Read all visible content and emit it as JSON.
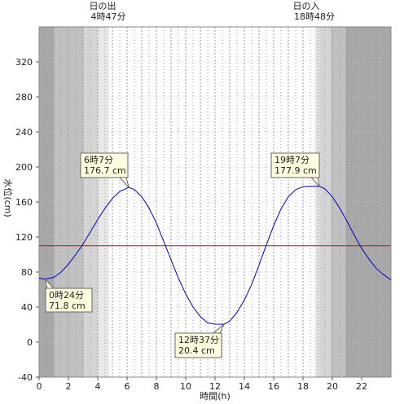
{
  "chart_data": {
    "type": "line",
    "title": "",
    "xlabel": "時間(h)",
    "ylabel": "水位(cm)",
    "xlim": [
      0,
      24
    ],
    "ylim": [
      -40,
      360
    ],
    "x_ticks": [
      0,
      2,
      4,
      6,
      8,
      10,
      12,
      14,
      16,
      18,
      20,
      22
    ],
    "y_ticks": [
      -40,
      0,
      40,
      80,
      120,
      160,
      200,
      240,
      280,
      320
    ],
    "grid": "vertical-dotted-every-half-hour",
    "reference_line": {
      "value": 110,
      "color": "#dd0000"
    },
    "series": [
      {
        "color": "#0000cc",
        "x": [
          0,
          0.4,
          1,
          1.5,
          2,
          2.5,
          3,
          3.5,
          4,
          4.5,
          5,
          5.5,
          6.12,
          6.5,
          7,
          7.5,
          8,
          8.5,
          9,
          9.5,
          10,
          10.5,
          11,
          11.5,
          12,
          12.62,
          13,
          13.5,
          14,
          14.5,
          15,
          15.5,
          16,
          16.5,
          17,
          17.5,
          18,
          18.5,
          19.12,
          19.5,
          20,
          20.5,
          21,
          21.5,
          22,
          22.5,
          23,
          23.5,
          24
        ],
        "y": [
          73,
          71.8,
          74,
          80,
          89,
          100,
          112,
          126,
          140,
          153,
          164,
          172,
          176.7,
          174,
          166,
          153,
          136,
          115,
          94,
          73,
          55,
          40,
          29,
          22,
          20.5,
          20.4,
          24,
          34,
          48,
          66,
          88,
          111,
          133,
          152,
          166,
          174,
          177.5,
          177.9,
          177.9,
          175,
          166,
          153,
          138,
          122,
          107,
          95,
          84,
          77,
          71
        ]
      }
    ],
    "daylight": {
      "sunrise": {
        "label_line1": "日の出",
        "label_line2": "4時47分",
        "hour": 4.78
      },
      "sunset": {
        "label_line1": "日の入",
        "label_line2": "18時48分",
        "hour": 18.8
      }
    },
    "annotations": [
      {
        "line1": "6時7分",
        "line2": "176.7 cm",
        "x": 6.12,
        "y": 176.7
      },
      {
        "line1": "19時7分",
        "line2": "177.9 cm",
        "x": 19.12,
        "y": 177.9
      },
      {
        "line1": "0時24分",
        "line2": "71.8 cm",
        "x": 0.4,
        "y": 71.8
      },
      {
        "line1": "12時37分",
        "line2": "20.4 cm",
        "x": 12.62,
        "y": 20.4
      }
    ]
  }
}
